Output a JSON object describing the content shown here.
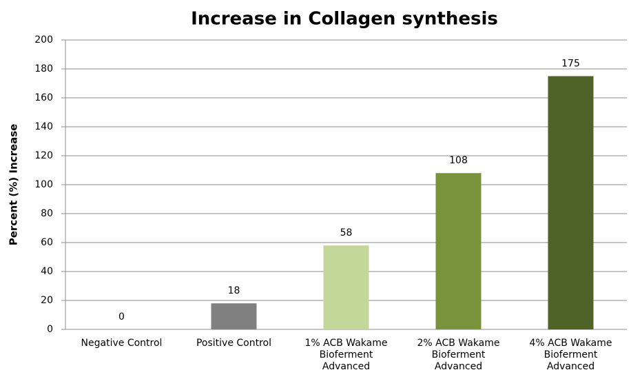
{
  "chart_data": {
    "type": "bar",
    "title": "Increase in Collagen synthesis",
    "y_label": "Percent (%) Increase",
    "categories": [
      "Negative Control",
      "Positive Control",
      "1% ACB Wakame Bioferment Advanced",
      "2% ACB Wakame Bioferment Advanced",
      "4% ACB Wakame Bioferment Advanced"
    ],
    "values": [
      0,
      18,
      58,
      108,
      175
    ],
    "colors": [
      "#808080",
      "#808080",
      "#c4d79b",
      "#77933c",
      "#4f6228"
    ],
    "ylim": [
      0,
      200
    ],
    "yticks": [
      0,
      20,
      40,
      60,
      80,
      100,
      120,
      140,
      160,
      180,
      200
    ],
    "grid": true
  }
}
